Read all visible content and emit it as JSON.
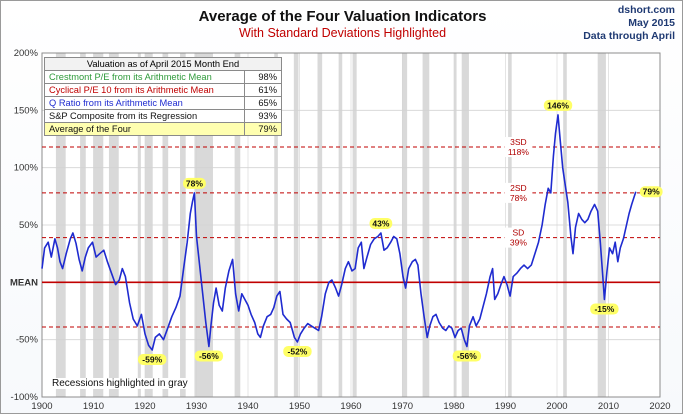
{
  "header": {
    "title": "Average of the Four Valuation Indicators",
    "subtitle": "With Standard Deviations Highlighted",
    "source_lines": [
      "dshort.com",
      "May 2015",
      "Data through April"
    ]
  },
  "table": {
    "header": "Valuation as of April 2015 Month End",
    "rows": [
      {
        "label": "Crestmont P/E from its Arithmetic Mean",
        "value": "98%",
        "color": "#2e9a3a"
      },
      {
        "label": "Cyclical P/E 10 from its Arithmetic Mean",
        "value": "61%",
        "color": "#c00000"
      },
      {
        "label": "Q Ratio from its Arithmetic Mean",
        "value": "65%",
        "color": "#1f2bd0"
      },
      {
        "label": "S&P Composite from its Regression",
        "value": "93%",
        "color": "#111111"
      },
      {
        "label": "Average of the Four",
        "value": "79%",
        "color": "#111111"
      }
    ]
  },
  "note": "Recessions highlighted in gray",
  "colors": {
    "line": "#1f2bd0",
    "mean": "#c00000",
    "sd": "#c00000",
    "recession": "#d9d9d9",
    "callout_bg": "#ffff66",
    "grid": "#d3d3d3"
  },
  "chart_data": {
    "type": "line",
    "xlim": [
      1900,
      2020
    ],
    "ylim": [
      -100,
      200
    ],
    "x_ticks": [
      1900,
      1910,
      1920,
      1930,
      1940,
      1950,
      1960,
      1970,
      1980,
      1990,
      2000,
      2010,
      2020
    ],
    "y_ticks": [
      {
        "value": 200,
        "label": "200%"
      },
      {
        "value": 150,
        "label": "150%"
      },
      {
        "value": 100,
        "label": "100%"
      },
      {
        "value": 50,
        "label": "50%"
      },
      {
        "value": 0,
        "label": "MEAN"
      },
      {
        "value": -50,
        "label": "-50%"
      },
      {
        "value": -100,
        "label": "-100%"
      }
    ],
    "reference_lines": [
      {
        "value": 0,
        "label": ""
      },
      {
        "value": 39,
        "label_top": "SD",
        "label_bottom": "39%"
      },
      {
        "value": 78,
        "label_top": "2SD",
        "label_bottom": "78%"
      },
      {
        "value": 118,
        "label_top": "3SD",
        "label_bottom": "118%"
      },
      {
        "value": -39,
        "label_top": "",
        "label_bottom": ""
      }
    ],
    "recessions": [
      [
        1902.7,
        1904.6
      ],
      [
        1907.4,
        1908.5
      ],
      [
        1910.0,
        1911.9
      ],
      [
        1913.0,
        1914.9
      ],
      [
        1918.6,
        1919.2
      ],
      [
        1920.0,
        1921.5
      ],
      [
        1923.4,
        1924.5
      ],
      [
        1926.8,
        1927.9
      ],
      [
        1929.6,
        1933.2
      ],
      [
        1937.4,
        1938.5
      ],
      [
        1945.1,
        1945.8
      ],
      [
        1948.9,
        1949.8
      ],
      [
        1953.5,
        1954.4
      ],
      [
        1957.6,
        1958.3
      ],
      [
        1960.3,
        1961.1
      ],
      [
        1969.9,
        1970.9
      ],
      [
        1973.9,
        1975.2
      ],
      [
        1980.0,
        1980.5
      ],
      [
        1981.5,
        1982.9
      ],
      [
        1990.5,
        1991.2
      ],
      [
        2001.2,
        2001.9
      ],
      [
        2007.9,
        2009.5
      ]
    ],
    "series": [
      {
        "values": [
          [
            1900,
            12
          ],
          [
            1900.5,
            30
          ],
          [
            1901.2,
            35
          ],
          [
            1901.8,
            22
          ],
          [
            1902.5,
            38
          ],
          [
            1903,
            30
          ],
          [
            1903.5,
            18
          ],
          [
            1904,
            12
          ],
          [
            1904.7,
            25
          ],
          [
            1905.5,
            38
          ],
          [
            1906,
            43
          ],
          [
            1906.6,
            34
          ],
          [
            1907.2,
            20
          ],
          [
            1907.8,
            10
          ],
          [
            1908.4,
            22
          ],
          [
            1909,
            30
          ],
          [
            1909.8,
            35
          ],
          [
            1910.5,
            22
          ],
          [
            1911.2,
            25
          ],
          [
            1912,
            28
          ],
          [
            1912.7,
            18
          ],
          [
            1913.5,
            8
          ],
          [
            1914.3,
            -2
          ],
          [
            1915,
            2
          ],
          [
            1915.6,
            12
          ],
          [
            1916.2,
            5
          ],
          [
            1917,
            -18
          ],
          [
            1917.7,
            -32
          ],
          [
            1918.5,
            -38
          ],
          [
            1919.3,
            -28
          ],
          [
            1920,
            -45
          ],
          [
            1920.7,
            -55
          ],
          [
            1921.4,
            -59
          ],
          [
            1922,
            -48
          ],
          [
            1922.8,
            -45
          ],
          [
            1923.6,
            -50
          ],
          [
            1924.4,
            -40
          ],
          [
            1925.2,
            -30
          ],
          [
            1926,
            -22
          ],
          [
            1926.8,
            -12
          ],
          [
            1927.5,
            12
          ],
          [
            1928.2,
            35
          ],
          [
            1928.8,
            60
          ],
          [
            1929.2,
            70
          ],
          [
            1929.6,
            78
          ],
          [
            1930,
            40
          ],
          [
            1930.6,
            15
          ],
          [
            1931.2,
            -10
          ],
          [
            1931.8,
            -35
          ],
          [
            1932.4,
            -56
          ],
          [
            1932.8,
            -38
          ],
          [
            1933.3,
            -18
          ],
          [
            1933.8,
            -5
          ],
          [
            1934.4,
            -20
          ],
          [
            1935,
            -25
          ],
          [
            1935.6,
            -5
          ],
          [
            1936.3,
            10
          ],
          [
            1937,
            20
          ],
          [
            1937.6,
            -10
          ],
          [
            1938.2,
            -25
          ],
          [
            1938.8,
            -10
          ],
          [
            1939.4,
            -15
          ],
          [
            1940,
            -20
          ],
          [
            1940.6,
            -28
          ],
          [
            1941.3,
            -35
          ],
          [
            1941.9,
            -45
          ],
          [
            1942.4,
            -48
          ],
          [
            1943,
            -38
          ],
          [
            1943.7,
            -30
          ],
          [
            1944.4,
            -28
          ],
          [
            1945,
            -22
          ],
          [
            1945.6,
            -12
          ],
          [
            1946.2,
            -8
          ],
          [
            1946.8,
            -28
          ],
          [
            1947.5,
            -32
          ],
          [
            1948.2,
            -35
          ],
          [
            1949,
            -48
          ],
          [
            1949.6,
            -52
          ],
          [
            1950.2,
            -45
          ],
          [
            1950.9,
            -40
          ],
          [
            1951.6,
            -36
          ],
          [
            1952.3,
            -38
          ],
          [
            1953,
            -40
          ],
          [
            1953.7,
            -42
          ],
          [
            1954.3,
            -30
          ],
          [
            1955,
            -10
          ],
          [
            1955.7,
            0
          ],
          [
            1956.3,
            2
          ],
          [
            1957,
            -5
          ],
          [
            1957.6,
            -12
          ],
          [
            1958.2,
            -2
          ],
          [
            1958.9,
            12
          ],
          [
            1959.5,
            18
          ],
          [
            1960.2,
            10
          ],
          [
            1960.8,
            12
          ],
          [
            1961.4,
            30
          ],
          [
            1962,
            35
          ],
          [
            1962.5,
            12
          ],
          [
            1963.1,
            22
          ],
          [
            1963.8,
            33
          ],
          [
            1964.5,
            38
          ],
          [
            1965.2,
            40
          ],
          [
            1965.8,
            43
          ],
          [
            1966.4,
            28
          ],
          [
            1967,
            30
          ],
          [
            1967.7,
            35
          ],
          [
            1968.3,
            40
          ],
          [
            1968.9,
            38
          ],
          [
            1969.5,
            25
          ],
          [
            1970.1,
            5
          ],
          [
            1970.6,
            -5
          ],
          [
            1971.2,
            12
          ],
          [
            1971.9,
            18
          ],
          [
            1972.5,
            20
          ],
          [
            1973,
            15
          ],
          [
            1973.6,
            -10
          ],
          [
            1974.2,
            -30
          ],
          [
            1974.8,
            -48
          ],
          [
            1975.3,
            -38
          ],
          [
            1975.9,
            -30
          ],
          [
            1976.5,
            -28
          ],
          [
            1977.1,
            -35
          ],
          [
            1977.8,
            -40
          ],
          [
            1978.4,
            -42
          ],
          [
            1979,
            -38
          ],
          [
            1979.6,
            -40
          ],
          [
            1980.2,
            -48
          ],
          [
            1980.8,
            -42
          ],
          [
            1981.4,
            -40
          ],
          [
            1982,
            -50
          ],
          [
            1982.5,
            -56
          ],
          [
            1983,
            -38
          ],
          [
            1983.7,
            -30
          ],
          [
            1984.3,
            -38
          ],
          [
            1985,
            -32
          ],
          [
            1985.6,
            -22
          ],
          [
            1986.3,
            -10
          ],
          [
            1987,
            5
          ],
          [
            1987.5,
            12
          ],
          [
            1987.9,
            -15
          ],
          [
            1988.5,
            -10
          ],
          [
            1989.1,
            -2
          ],
          [
            1989.7,
            5
          ],
          [
            1990.3,
            -2
          ],
          [
            1990.9,
            -12
          ],
          [
            1991.5,
            5
          ],
          [
            1992.2,
            8
          ],
          [
            1992.9,
            12
          ],
          [
            1993.6,
            15
          ],
          [
            1994.3,
            12
          ],
          [
            1995,
            15
          ],
          [
            1995.7,
            25
          ],
          [
            1996.4,
            35
          ],
          [
            1997.1,
            50
          ],
          [
            1997.7,
            68
          ],
          [
            1998.3,
            82
          ],
          [
            1998.8,
            78
          ],
          [
            1999.3,
            110
          ],
          [
            1999.7,
            130
          ],
          [
            2000.2,
            146
          ],
          [
            2000.6,
            125
          ],
          [
            2001.1,
            100
          ],
          [
            2001.6,
            85
          ],
          [
            2002.1,
            70
          ],
          [
            2002.7,
            40
          ],
          [
            2003.1,
            25
          ],
          [
            2003.6,
            48
          ],
          [
            2004.2,
            60
          ],
          [
            2004.8,
            55
          ],
          [
            2005.4,
            52
          ],
          [
            2006,
            55
          ],
          [
            2006.6,
            62
          ],
          [
            2007.3,
            68
          ],
          [
            2007.9,
            62
          ],
          [
            2008.4,
            35
          ],
          [
            2008.9,
            5
          ],
          [
            2009.2,
            -15
          ],
          [
            2009.7,
            10
          ],
          [
            2010.2,
            30
          ],
          [
            2010.8,
            25
          ],
          [
            2011.3,
            35
          ],
          [
            2011.8,
            18
          ],
          [
            2012.3,
            30
          ],
          [
            2012.9,
            38
          ],
          [
            2013.5,
            50
          ],
          [
            2014,
            60
          ],
          [
            2014.5,
            68
          ],
          [
            2015.3,
            79
          ]
        ]
      }
    ],
    "callouts": [
      {
        "x": 1921.4,
        "y": -59,
        "label": "-59%",
        "pos": "below"
      },
      {
        "x": 1929.6,
        "y": 78,
        "label": "78%",
        "pos": "above"
      },
      {
        "x": 1932.4,
        "y": -56,
        "label": "-56%",
        "pos": "below"
      },
      {
        "x": 1949.6,
        "y": -52,
        "label": "-52%",
        "pos": "below"
      },
      {
        "x": 1965.8,
        "y": 43,
        "label": "43%",
        "pos": "above"
      },
      {
        "x": 1982.5,
        "y": -56,
        "label": "-56%",
        "pos": "below"
      },
      {
        "x": 2000.2,
        "y": 146,
        "label": "146%",
        "pos": "above"
      },
      {
        "x": 2009.2,
        "y": -15,
        "label": "-15%",
        "pos": "below"
      },
      {
        "x": 2015.3,
        "y": 79,
        "label": "79%",
        "pos": "right"
      }
    ]
  }
}
